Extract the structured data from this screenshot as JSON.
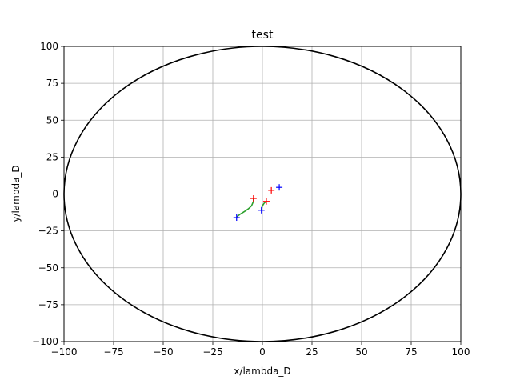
{
  "chart_data": {
    "type": "scatter",
    "title": "test",
    "xlabel": "x/lambda_D",
    "ylabel": "y/lambda_D",
    "xlim": [
      -100,
      100
    ],
    "ylim": [
      -100,
      100
    ],
    "xticks": [
      -100,
      -75,
      -50,
      -25,
      0,
      25,
      50,
      75,
      100
    ],
    "yticks": [
      -100,
      -75,
      -50,
      -25,
      0,
      25,
      50,
      75,
      100
    ],
    "grid": true,
    "boundary_circle": {
      "center": [
        0,
        0
      ],
      "radius": 100,
      "color": "#000000"
    },
    "series": [
      {
        "marker": "+",
        "color": "#0000ff",
        "points": [
          [
            -13,
            -16
          ],
          [
            -0.5,
            -11
          ],
          [
            8.5,
            4.5
          ]
        ]
      },
      {
        "marker": "+",
        "color": "#ff0000",
        "points": [
          [
            -4.5,
            -3
          ],
          [
            2,
            -5
          ],
          [
            4.5,
            2.5
          ]
        ]
      },
      {
        "type": "line",
        "color": "#2ca02c",
        "points": [
          [
            -13,
            -15.5
          ],
          [
            -11,
            -13.5
          ],
          [
            -9,
            -11.8
          ],
          [
            -7,
            -10
          ],
          [
            -5.5,
            -8
          ],
          [
            -4.5,
            -5
          ],
          [
            -4.5,
            -3
          ]
        ]
      },
      {
        "type": "line",
        "color": "#2ca02c",
        "points": [
          [
            -0.5,
            -10.5
          ],
          [
            0,
            -8
          ],
          [
            1,
            -6
          ],
          [
            2,
            -5
          ]
        ]
      }
    ]
  }
}
